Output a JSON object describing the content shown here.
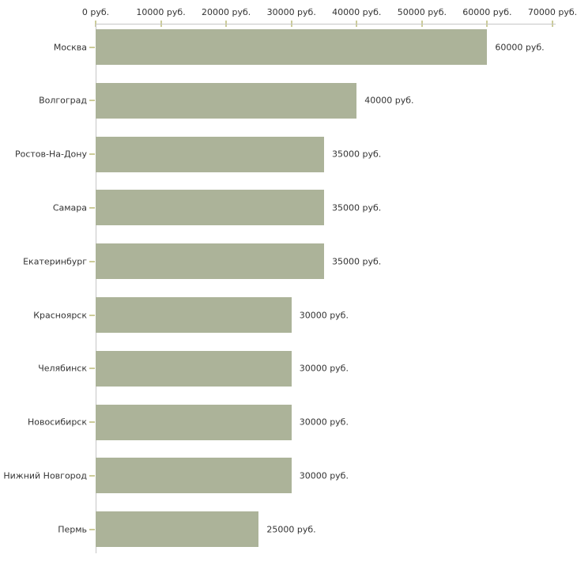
{
  "chart_data": {
    "type": "bar",
    "orientation": "horizontal",
    "title": "",
    "unit": "руб.",
    "categories": [
      "Москва",
      "Волгоград",
      "Ростов-На-Дону",
      "Самара",
      "Екатеринбург",
      "Красноярск",
      "Челябинск",
      "Новосибирск",
      "Нижний Новгород",
      "Пермь"
    ],
    "values": [
      60000,
      40000,
      35000,
      35000,
      35000,
      30000,
      30000,
      30000,
      30000,
      25000
    ],
    "value_labels": [
      "60000 руб.",
      "40000 руб.",
      "35000 руб.",
      "35000 руб.",
      "35000 руб.",
      "30000 руб.",
      "30000 руб.",
      "30000 руб.",
      "30000 руб.",
      "25000 руб."
    ],
    "x_axis": {
      "min": 0,
      "max": 70000,
      "step": 10000,
      "position": "top",
      "tick_labels": [
        "0 руб.",
        "10000 руб.",
        "20000 руб.",
        "30000 руб.",
        "40000 руб.",
        "50000 руб.",
        "60000 руб.",
        "70000 руб."
      ]
    },
    "grid": false,
    "legend": false,
    "colors": {
      "bar": "#acb399",
      "axis_line": "#c6c6c6",
      "tick": "#cccc99",
      "text": "#333333",
      "background": "#ffffff"
    }
  }
}
